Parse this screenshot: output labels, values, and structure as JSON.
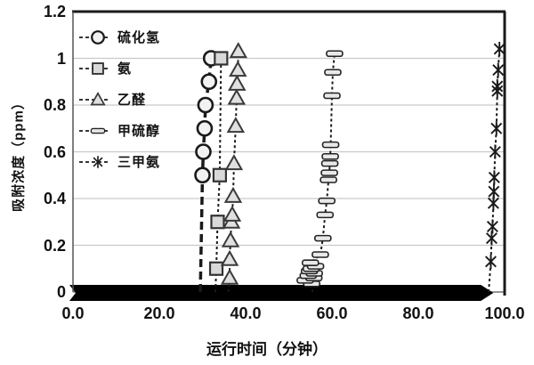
{
  "chart_data": {
    "type": "scatter",
    "title": "",
    "xlabel": "运行时间（分钟）",
    "ylabel": "吸附浓度（ppm）",
    "xlim": [
      0,
      100
    ],
    "ylim": [
      0,
      1.2
    ],
    "xticks": [
      0,
      20,
      40,
      60,
      80,
      100
    ],
    "xtick_labels": [
      "0.0",
      "20.0",
      "40.0",
      "60.0",
      "80.0",
      "100.0"
    ],
    "yticks": [
      0,
      0.2,
      0.4,
      0.6,
      0.8,
      1,
      1.2
    ],
    "ytick_labels": [
      "0",
      "0.2",
      "0.4",
      "0.6",
      "0.8",
      "1",
      "1.2"
    ],
    "grid": true,
    "legend_position": "top-left-inside",
    "colors": {
      "marker_fill": "#e8e8e8",
      "marker_stroke": "#1a1a1a",
      "line": "#1a1a1a",
      "gridline": "#c9c9c9",
      "border": "#1a1a1a",
      "baseline_band": "#000000"
    },
    "baseline_band": {
      "y": 0,
      "x_start": 0,
      "x_end": 94.5,
      "note": "thick black band along y=0 ending in a right-pointing arrow tip"
    },
    "series": [
      {
        "name": "硫化氢",
        "marker": "circle",
        "line": "dashed-heavy",
        "points": [
          [
            29.5,
            0
          ],
          [
            30.0,
            0.5
          ],
          [
            30.2,
            0.6
          ],
          [
            30.5,
            0.7
          ],
          [
            30.7,
            0.8
          ],
          [
            31.5,
            0.9
          ],
          [
            32.0,
            1.0
          ]
        ]
      },
      {
        "name": "氨",
        "marker": "square",
        "line": "dashed",
        "points": [
          [
            33.0,
            0
          ],
          [
            33.2,
            0.1
          ],
          [
            33.5,
            0.3
          ],
          [
            34.0,
            0.5
          ],
          [
            34.3,
            1.0
          ]
        ]
      },
      {
        "name": "乙醛",
        "marker": "triangle",
        "line": "dashed",
        "points": [
          [
            36.0,
            0
          ],
          [
            36.3,
            0.06
          ],
          [
            36.3,
            0.14
          ],
          [
            36.5,
            0.22
          ],
          [
            36.7,
            0.3
          ],
          [
            36.9,
            0.33
          ],
          [
            37.1,
            0.41
          ],
          [
            37.3,
            0.55
          ],
          [
            37.7,
            0.71
          ],
          [
            37.9,
            0.83
          ],
          [
            38.0,
            0.89
          ],
          [
            38.2,
            0.95
          ],
          [
            38.3,
            1.03
          ]
        ]
      },
      {
        "name": "甲硫醇",
        "marker": "bar",
        "line": "dashed",
        "points": [
          [
            55.5,
            0
          ],
          [
            55.3,
            0.035
          ],
          [
            53.8,
            0.05
          ],
          [
            55.8,
            0.06
          ],
          [
            54.5,
            0.07
          ],
          [
            55.9,
            0.08
          ],
          [
            54.8,
            0.09
          ],
          [
            55.2,
            0.1
          ],
          [
            56.2,
            0.11
          ],
          [
            55.0,
            0.125
          ],
          [
            57.3,
            0.16
          ],
          [
            57.9,
            0.23
          ],
          [
            58.4,
            0.33
          ],
          [
            58.8,
            0.39
          ],
          [
            59.2,
            0.48
          ],
          [
            59.4,
            0.51
          ],
          [
            59.5,
            0.55
          ],
          [
            59.6,
            0.58
          ],
          [
            59.7,
            0.63
          ],
          [
            60.0,
            0.84
          ],
          [
            60.2,
            0.94
          ],
          [
            60.6,
            1.02
          ]
        ]
      },
      {
        "name": "三甲氨",
        "marker": "asterisk",
        "line": "dashed",
        "points": [
          [
            96.3,
            0
          ],
          [
            96.8,
            0.13
          ],
          [
            97.0,
            0.23
          ],
          [
            97.2,
            0.28
          ],
          [
            97.4,
            0.38
          ],
          [
            97.5,
            0.43
          ],
          [
            97.6,
            0.49
          ],
          [
            97.8,
            0.6
          ],
          [
            98.1,
            0.7
          ],
          [
            98.3,
            0.86
          ],
          [
            98.3,
            0.88
          ],
          [
            98.5,
            0.95
          ],
          [
            98.8,
            1.04
          ]
        ]
      }
    ]
  }
}
